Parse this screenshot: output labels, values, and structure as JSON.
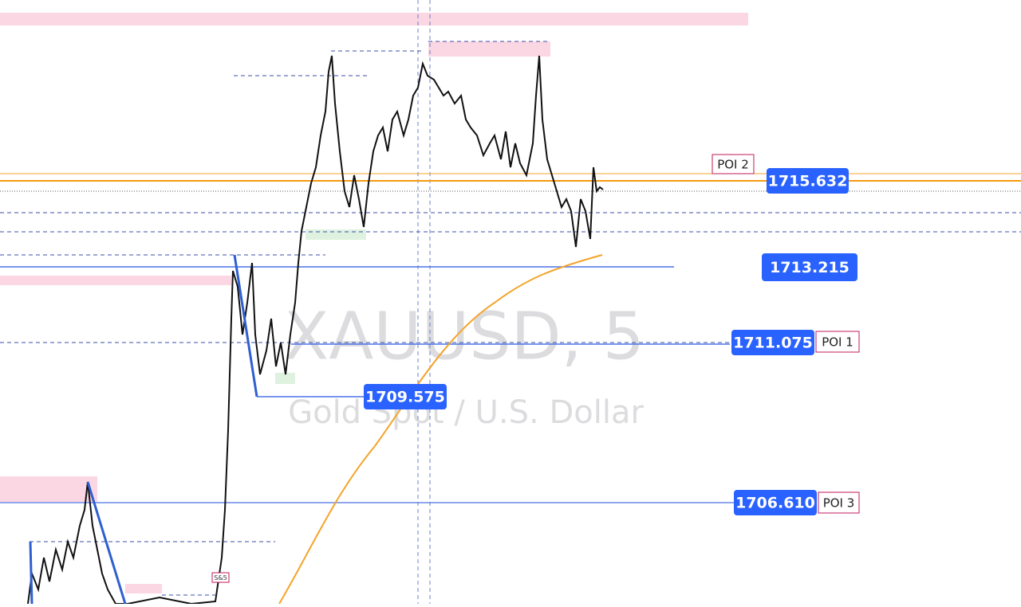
{
  "watermark": {
    "symbol": "XAUUSD, 5",
    "description": "Gold Spot / U.S. Dollar"
  },
  "marker": {
    "label": "S&5"
  },
  "levels": [
    {
      "price": "1715.632",
      "poi": "POI 2"
    },
    {
      "price": "1713.215"
    },
    {
      "price": "1711.075",
      "poi": "POI 1"
    },
    {
      "price": "1709.575"
    },
    {
      "price": "1706.610",
      "poi": "POI 3"
    }
  ]
}
